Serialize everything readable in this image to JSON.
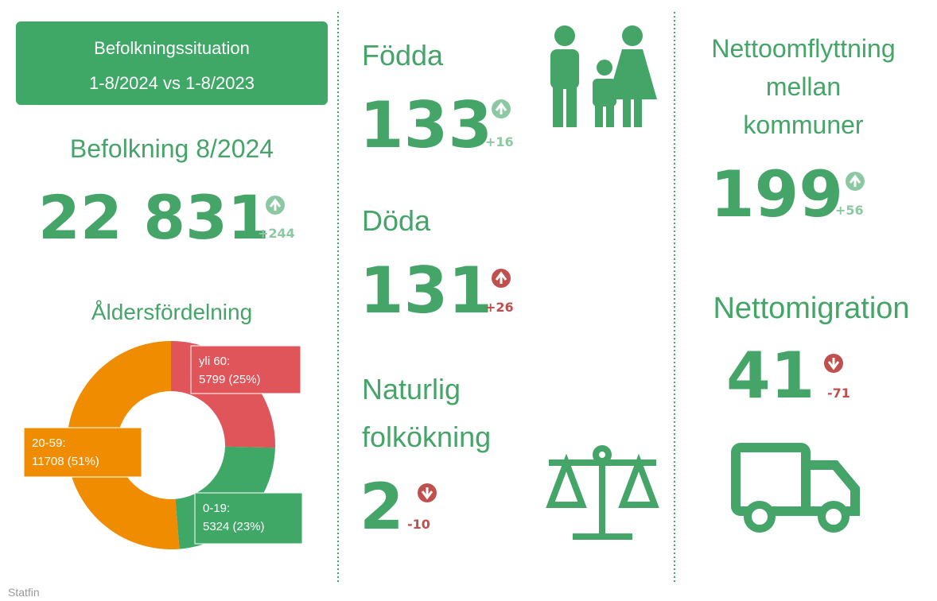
{
  "header": {
    "lines": [
      "Befolkningssituation",
      "1-8/2024 vs 1-8/2023"
    ]
  },
  "population": {
    "label": "Befolkning 8/2024",
    "value": "22 831",
    "change": "+244"
  },
  "age_distribution": {
    "title": "Åldersfördelning",
    "segments": [
      {
        "name": "yli 60:",
        "value": 5799,
        "value_label": "5799 (25%)",
        "color": "#e0555a"
      },
      {
        "name": "0-19:",
        "value": 5324,
        "value_label": "5324 (23%)",
        "color": "#3fa866"
      },
      {
        "name": "20-59:",
        "value": 11708,
        "value_label": "11708 (51%)",
        "color": "#f08c00"
      }
    ]
  },
  "births": {
    "label": "Födda",
    "value": "133",
    "change": "+16"
  },
  "deaths": {
    "label": "Döda",
    "value": "131",
    "change": "+26"
  },
  "natural_increase": {
    "label_lines": [
      "Naturlig",
      "folkökning"
    ],
    "value": "2",
    "change": "-10"
  },
  "net_internal_migration": {
    "label_lines": [
      "Nettoomflyttning",
      "mellan",
      "kommuner"
    ],
    "value": "199",
    "change": "+56"
  },
  "net_migration": {
    "label": "Nettomigration",
    "value": "41",
    "change": "-71"
  },
  "footer": {
    "source": "Statfin"
  }
}
